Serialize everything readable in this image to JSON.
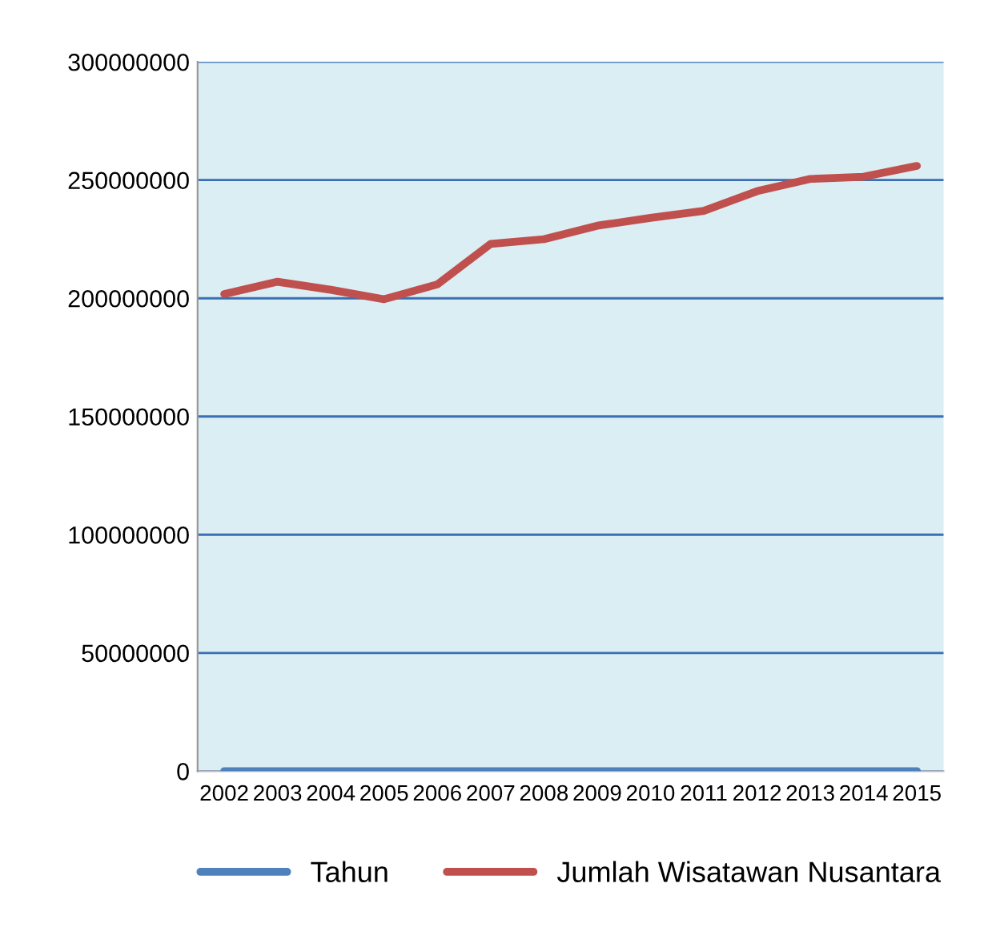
{
  "chart_data": {
    "type": "line",
    "categories": [
      "2002",
      "2003",
      "2004",
      "2005",
      "2006",
      "2007",
      "2008",
      "2009",
      "2010",
      "2011",
      "2012",
      "2013",
      "2014",
      "2015"
    ],
    "series": [
      {
        "name": "Tahun",
        "color": "#4f81bd",
        "values": [
          0,
          0,
          0,
          0,
          0,
          0,
          0,
          0,
          0,
          0,
          0,
          0,
          0,
          0
        ]
      },
      {
        "name": "Jumlah Wisatawan Nusantara",
        "color": "#c0504d",
        "values": [
          201800000,
          207000000,
          203600000,
          199600000,
          205900000,
          223000000,
          225000000,
          230700000,
          234000000,
          237000000,
          245300000,
          250500000,
          251400000,
          256000000
        ]
      }
    ],
    "ylim": [
      0,
      300000000
    ],
    "yticks": [
      0,
      50000000,
      100000000,
      150000000,
      200000000,
      250000000,
      300000000
    ],
    "grid": "y",
    "legend": "bottom",
    "marker": "none",
    "line_style": "solid"
  }
}
